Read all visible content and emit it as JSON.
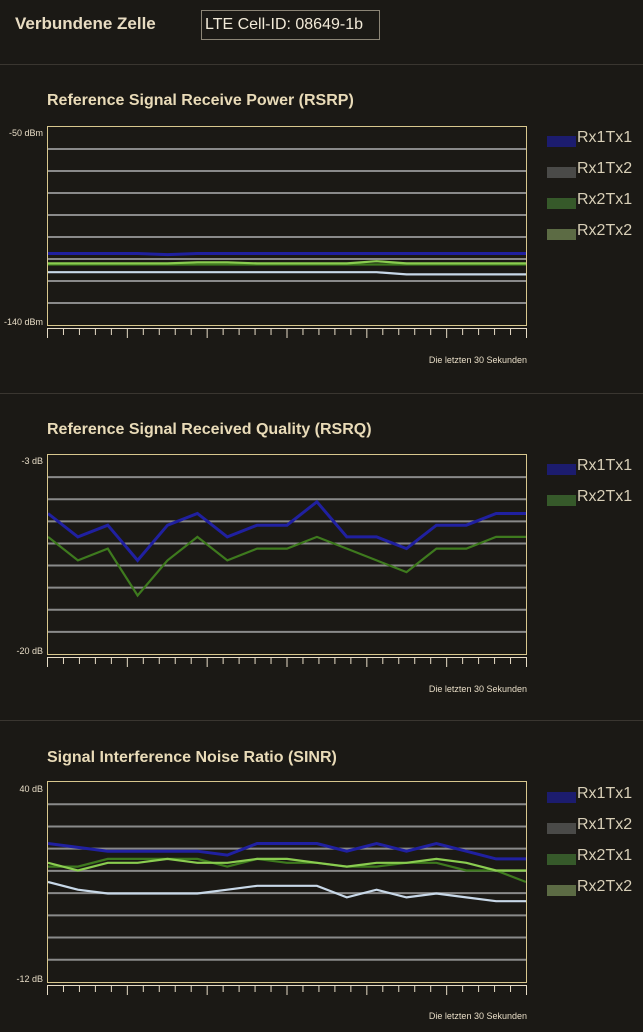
{
  "header": {
    "label": "Verbundene Zelle",
    "cell_id": "LTE Cell-ID: 08649-1b"
  },
  "colors": {
    "Rx1Tx1": "#2020a0",
    "Rx1Tx2": "#c8d8e8",
    "Rx2Tx1": "#3e7a1e",
    "Rx2Tx2": "#8acc50",
    "legend_Rx1Tx1": "#1c1c6e",
    "legend_Rx1Tx2": "#4a4a48",
    "legend_Rx2Tx1": "#36592a",
    "legend_Rx2Tx2": "#5c6b44",
    "grid": "#8a8a8a",
    "frame": "#d8c78e"
  },
  "charts": [
    {
      "id": "rsrp",
      "title": "Reference Signal Receive Power (RSRP)",
      "ymax_label": "-50 dBm",
      "ymin_label": "-140 dBm",
      "xlabel": "Die letzten 30 Sekunden",
      "legend": [
        "Rx1Tx1",
        "Rx1Tx2",
        "Rx2Tx1",
        "Rx2Tx2"
      ]
    },
    {
      "id": "rsrq",
      "title": "Reference Signal Received Quality (RSRQ)",
      "ymax_label": "-3 dB",
      "ymin_label": "-20 dB",
      "xlabel": "Die letzten 30 Sekunden",
      "legend": [
        "Rx1Tx1",
        "Rx2Tx1"
      ]
    },
    {
      "id": "sinr",
      "title": "Signal Interference Noise Ratio (SINR)",
      "ymax_label": "40 dB",
      "ymin_label": "-12 dB",
      "xlabel": "Die letzten 30 Sekunden",
      "legend": [
        "Rx1Tx1",
        "Rx1Tx2",
        "Rx2Tx1",
        "Rx2Tx2"
      ]
    }
  ],
  "chart_data": [
    {
      "type": "line",
      "title": "Reference Signal Receive Power (RSRP)",
      "xlabel": "Die letzten 30 Sekunden",
      "ylabel": "dBm",
      "ylim": [
        -140,
        -50
      ],
      "grid": true,
      "legend_position": "right",
      "x": [
        0,
        1,
        2,
        3,
        4,
        5,
        6,
        7,
        8,
        9,
        10,
        11,
        12,
        13,
        14,
        15,
        16
      ],
      "series": [
        {
          "name": "Rx1Tx1",
          "values": [
            -107.5,
            -107.5,
            -107.5,
            -107.5,
            -108,
            -107.5,
            -107.5,
            -107.5,
            -107.5,
            -107.5,
            -107.5,
            -107.5,
            -107.5,
            -107.5,
            -107.5,
            -107.5,
            -107.5
          ]
        },
        {
          "name": "Rx1Tx2",
          "values": [
            -116,
            -116,
            -116,
            -116,
            -116,
            -116,
            -116,
            -116,
            -116,
            -116,
            -116,
            -116,
            -117,
            -117,
            -117,
            -117,
            -117
          ]
        },
        {
          "name": "Rx2Tx1",
          "values": [
            -112.5,
            -112.5,
            -112.5,
            -112.5,
            -112.5,
            -112.5,
            -112.5,
            -112.5,
            -112.5,
            -112.5,
            -112.5,
            -112.5,
            -112.5,
            -112.5,
            -112.5,
            -112.5,
            -112.5
          ]
        },
        {
          "name": "Rx2Tx2",
          "values": [
            -112,
            -112,
            -112,
            -112,
            -112,
            -111.5,
            -111.5,
            -112,
            -112,
            -112,
            -112,
            -111,
            -112,
            -112,
            -112,
            -112,
            -112
          ]
        }
      ]
    },
    {
      "type": "line",
      "title": "Reference Signal Received Quality (RSRQ)",
      "xlabel": "Die letzten 30 Sekunden",
      "ylabel": "dB",
      "ylim": [
        -20,
        -3
      ],
      "grid": true,
      "legend_position": "right",
      "x": [
        0,
        1,
        2,
        3,
        4,
        5,
        6,
        7,
        8,
        9,
        10,
        11,
        12,
        13,
        14,
        15,
        16
      ],
      "series": [
        {
          "name": "Rx1Tx1",
          "values": [
            -8,
            -10,
            -9,
            -12,
            -9,
            -8,
            -10,
            -9,
            -9,
            -7,
            -10,
            -10,
            -11,
            -9,
            -9,
            -8,
            -8
          ]
        },
        {
          "name": "Rx2Tx1",
          "values": [
            -10,
            -12,
            -11,
            -15,
            -12,
            -10,
            -12,
            -11,
            -11,
            -10,
            -11,
            -12,
            -13,
            -11,
            -11,
            -10,
            -10
          ]
        }
      ]
    },
    {
      "type": "line",
      "title": "Signal Interference Noise Ratio (SINR)",
      "xlabel": "Die letzten 30 Sekunden",
      "ylabel": "dB",
      "ylim": [
        -12,
        40
      ],
      "grid": true,
      "legend_position": "right",
      "x": [
        0,
        1,
        2,
        3,
        4,
        5,
        6,
        7,
        8,
        9,
        10,
        11,
        12,
        13,
        14,
        15,
        16
      ],
      "series": [
        {
          "name": "Rx1Tx1",
          "values": [
            24,
            23,
            22,
            22,
            22,
            22,
            21,
            24,
            24,
            24,
            22,
            24,
            22,
            24,
            22,
            20,
            20
          ]
        },
        {
          "name": "Rx1Tx2",
          "values": [
            14,
            12,
            11,
            11,
            11,
            11,
            12,
            13,
            13,
            13,
            10,
            12,
            10,
            11,
            10,
            9,
            9
          ]
        },
        {
          "name": "Rx2Tx1",
          "values": [
            18,
            18,
            20,
            20,
            20,
            20,
            18,
            20,
            19,
            19,
            18,
            18,
            19,
            19,
            17,
            17,
            14
          ]
        },
        {
          "name": "Rx2Tx2",
          "values": [
            19,
            17,
            19,
            19,
            20,
            19,
            19,
            20,
            20,
            19,
            18,
            19,
            19,
            20,
            19,
            17,
            17
          ]
        }
      ]
    }
  ]
}
